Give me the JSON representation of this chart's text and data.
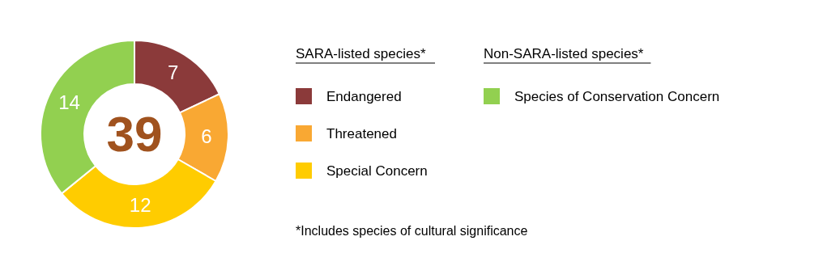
{
  "chart_data": {
    "type": "donut",
    "categories": [
      "Endangered",
      "Threatened",
      "Special Concern",
      "Species of Conservation Concern"
    ],
    "values": [
      7,
      6,
      12,
      14
    ],
    "colors": [
      "#8b3a3a",
      "#f9a833",
      "#ffcc00",
      "#92d050"
    ],
    "data_labels": true,
    "legend": "right",
    "annotations": [
      "39",
      "SARA-listed species*",
      "Non-SARA-listed species*",
      "*Includes species of cultural significance"
    ]
  }
}
